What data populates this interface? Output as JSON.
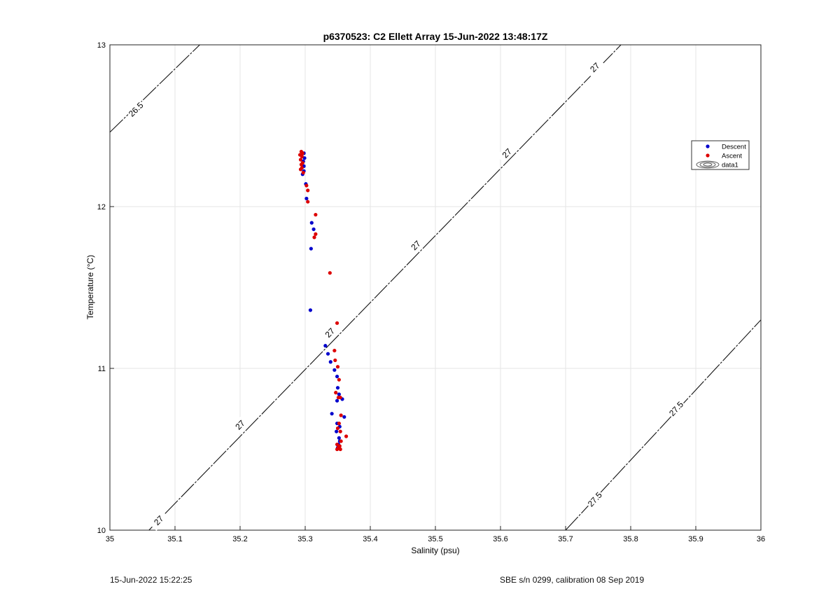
{
  "chart_data": {
    "type": "scatter",
    "title": "p6370523: C2 Ellett Array 15-Jun-2022 13:48:17Z",
    "xlabel": "Salinity (psu)",
    "ylabel": "Temperature (°C)",
    "xlim": [
      35,
      36
    ],
    "ylim": [
      10,
      13
    ],
    "xticks": [
      "35",
      "35.1",
      "35.2",
      "35.3",
      "35.4",
      "35.5",
      "35.6",
      "35.7",
      "35.8",
      "35.9",
      "36"
    ],
    "yticks": [
      "10",
      "11",
      "12",
      "13"
    ],
    "grid": true,
    "legend_position": "right",
    "legend": [
      {
        "label": "Descent",
        "kind": "marker",
        "color": "#0000cc"
      },
      {
        "label": "Ascent",
        "kind": "marker",
        "color": "#dd0000"
      },
      {
        "label": "data1",
        "kind": "contour"
      }
    ],
    "series": [
      {
        "name": "Descent",
        "color": "#0000cc",
        "points": [
          [
            35.298,
            12.33
          ],
          [
            35.299,
            12.3
          ],
          [
            35.297,
            12.28
          ],
          [
            35.298,
            12.25
          ],
          [
            35.298,
            12.22
          ],
          [
            35.296,
            12.2
          ],
          [
            35.301,
            12.14
          ],
          [
            35.302,
            12.05
          ],
          [
            35.31,
            11.9
          ],
          [
            35.313,
            11.86
          ],
          [
            35.309,
            11.74
          ],
          [
            35.308,
            11.36
          ],
          [
            35.331,
            11.14
          ],
          [
            35.335,
            11.09
          ],
          [
            35.339,
            11.04
          ],
          [
            35.345,
            10.99
          ],
          [
            35.349,
            10.95
          ],
          [
            35.35,
            10.88
          ],
          [
            35.352,
            10.84
          ],
          [
            35.357,
            10.81
          ],
          [
            35.349,
            10.8
          ],
          [
            35.341,
            10.72
          ],
          [
            35.36,
            10.7
          ],
          [
            35.349,
            10.66
          ],
          [
            35.353,
            10.64
          ],
          [
            35.348,
            10.61
          ],
          [
            35.352,
            10.57
          ],
          [
            35.353,
            10.55
          ],
          [
            35.351,
            10.53
          ],
          [
            35.35,
            10.51
          ]
        ]
      },
      {
        "name": "Ascent",
        "color": "#dd0000",
        "points": [
          [
            35.294,
            12.34
          ],
          [
            35.296,
            12.33
          ],
          [
            35.292,
            12.32
          ],
          [
            35.295,
            12.31
          ],
          [
            35.293,
            12.29
          ],
          [
            35.296,
            12.27
          ],
          [
            35.294,
            12.26
          ],
          [
            35.295,
            12.24
          ],
          [
            35.293,
            12.23
          ],
          [
            35.297,
            12.21
          ],
          [
            35.302,
            12.13
          ],
          [
            35.304,
            12.1
          ],
          [
            35.304,
            12.03
          ],
          [
            35.316,
            11.95
          ],
          [
            35.316,
            11.83
          ],
          [
            35.314,
            11.81
          ],
          [
            35.338,
            11.59
          ],
          [
            35.349,
            11.28
          ],
          [
            35.345,
            11.11
          ],
          [
            35.346,
            11.05
          ],
          [
            35.35,
            11.01
          ],
          [
            35.352,
            10.93
          ],
          [
            35.347,
            10.85
          ],
          [
            35.351,
            10.82
          ],
          [
            35.354,
            10.82
          ],
          [
            35.355,
            10.71
          ],
          [
            35.352,
            10.66
          ],
          [
            35.35,
            10.63
          ],
          [
            35.354,
            10.61
          ],
          [
            35.363,
            10.58
          ],
          [
            35.355,
            10.55
          ],
          [
            35.349,
            10.53
          ],
          [
            35.353,
            10.52
          ],
          [
            35.351,
            10.51
          ],
          [
            35.354,
            10.5
          ],
          [
            35.349,
            10.5
          ]
        ]
      }
    ],
    "isopycnals": [
      {
        "label": "26.5",
        "from": [
          35.0,
          12.46
        ],
        "to": [
          35.138,
          13.0
        ]
      },
      {
        "label": "27",
        "from": [
          35.06,
          10.0
        ],
        "to": [
          35.785,
          13.0
        ]
      },
      {
        "label": "27.5",
        "from": [
          35.7,
          10.0
        ],
        "to": [
          36.0,
          11.3
        ]
      }
    ],
    "contour_labels": [
      {
        "text": "26.5",
        "at": [
          35.04,
          12.6
        ]
      },
      {
        "text": "27",
        "at": [
          35.075,
          10.06
        ]
      },
      {
        "text": "27",
        "at": [
          35.2,
          10.65
        ]
      },
      {
        "text": "27",
        "at": [
          35.338,
          11.22
        ]
      },
      {
        "text": "27",
        "at": [
          35.47,
          11.76
        ]
      },
      {
        "text": "27",
        "at": [
          35.61,
          12.33
        ]
      },
      {
        "text": "27",
        "at": [
          35.745,
          12.86
        ]
      },
      {
        "text": "27.5",
        "at": [
          35.745,
          10.19
        ]
      },
      {
        "text": "27.5",
        "at": [
          35.87,
          10.75
        ]
      }
    ]
  },
  "footer": {
    "left": "15-Jun-2022 15:22:25",
    "right": "SBE s/n 0299, calibration 08 Sep 2019"
  }
}
